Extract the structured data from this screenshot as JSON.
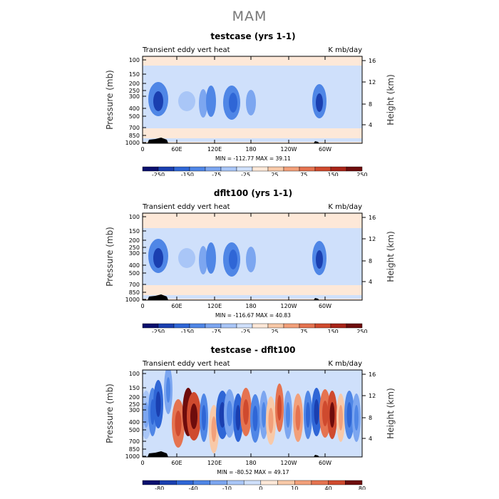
{
  "figure_title": "MAM",
  "chart_data": [
    {
      "type": "heatmap",
      "title": "testcase (yrs 1-1)",
      "left_label": "Transient eddy vert heat",
      "right_label": "K mb/day",
      "ylabel": "Pressure (mb)",
      "right_axis_label": "Height (km)",
      "stats": "MIN = -112.77   MAX =  39.11",
      "x_ticks": [
        "0",
        "60E",
        "120E",
        "180",
        "120W",
        "60W"
      ],
      "y_ticks": [
        "100",
        "150",
        "200",
        "250",
        "300",
        "400",
        "500",
        "700",
        "850",
        "1000"
      ],
      "right_ticks": [
        "16",
        "12",
        "8",
        "4"
      ],
      "colorbar_levels": [
        "-250",
        "-150",
        "-75",
        "-25",
        "25",
        "75",
        "150",
        "250"
      ],
      "colorbar_colors": [
        "#0a0f6e",
        "#1a3fb0",
        "#2f66d6",
        "#4f86e6",
        "#7ca6f0",
        "#a9c6f7",
        "#cfe0fb",
        "#fde8d8",
        "#f8c9a8",
        "#f2a07a",
        "#e57350",
        "#cf4a2e",
        "#a82418",
        "#6e0c0c"
      ],
      "min": -112.77,
      "max": 39.11
    },
    {
      "type": "heatmap",
      "title": "dflt100 (yrs 1-1)",
      "left_label": "Transient eddy vert heat",
      "right_label": "K mb/day",
      "ylabel": "Pressure (mb)",
      "right_axis_label": "Height (km)",
      "stats": "MIN = -116.67   MAX =  40.83",
      "x_ticks": [
        "0",
        "60E",
        "120E",
        "180",
        "120W",
        "60W"
      ],
      "y_ticks": [
        "100",
        "150",
        "200",
        "250",
        "300",
        "400",
        "500",
        "700",
        "850",
        "1000"
      ],
      "right_ticks": [
        "16",
        "12",
        "8",
        "4"
      ],
      "colorbar_levels": [
        "-250",
        "-150",
        "-75",
        "-25",
        "25",
        "75",
        "150",
        "250"
      ],
      "colorbar_colors": [
        "#0a0f6e",
        "#1a3fb0",
        "#2f66d6",
        "#4f86e6",
        "#7ca6f0",
        "#a9c6f7",
        "#cfe0fb",
        "#fde8d8",
        "#f8c9a8",
        "#f2a07a",
        "#e57350",
        "#cf4a2e",
        "#a82418",
        "#6e0c0c"
      ],
      "min": -116.67,
      "max": 40.83
    },
    {
      "type": "heatmap",
      "title": "testcase - dflt100",
      "left_label": "Transient eddy vert heat",
      "right_label": "K mb/day",
      "ylabel": "Pressure (mb)",
      "right_axis_label": "Height (km)",
      "stats": "MIN = -80.52   MAX =  49.17",
      "x_ticks": [
        "0",
        "60E",
        "120E",
        "180",
        "120W",
        "60W"
      ],
      "y_ticks": [
        "100",
        "150",
        "200",
        "250",
        "300",
        "400",
        "500",
        "700",
        "850",
        "1000"
      ],
      "right_ticks": [
        "16",
        "12",
        "8",
        "4"
      ],
      "colorbar_levels": [
        "-80",
        "-40",
        "-10",
        "0",
        "10",
        "40",
        "80"
      ],
      "colorbar_colors": [
        "#0a0f6e",
        "#1a3fb0",
        "#2f66d6",
        "#4f86e6",
        "#7ca6f0",
        "#a9c6f7",
        "#cfe0fb",
        "#fde8d8",
        "#f8c9a8",
        "#f2a07a",
        "#e57350",
        "#cf4a2e",
        "#6e0c0c"
      ],
      "min": -80.52,
      "max": 49.17
    }
  ]
}
